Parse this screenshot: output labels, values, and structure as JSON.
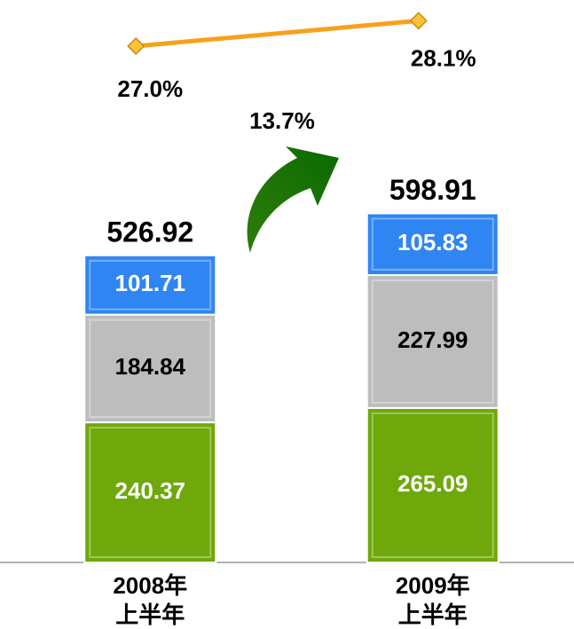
{
  "chart_data": {
    "type": "bar",
    "stacked": true,
    "categories": [
      "2008年\n上半年",
      "2009年\n上半年"
    ],
    "series": [
      {
        "name": "segment-1",
        "color": "#6fa80a",
        "values": [
          240.37,
          265.09
        ]
      },
      {
        "name": "segment-2",
        "color": "#bdbdbd",
        "values": [
          184.84,
          227.99
        ]
      },
      {
        "name": "segment-3",
        "color": "#2f86f2",
        "values": [
          101.71,
          105.83
        ]
      }
    ],
    "totals": [
      526.92,
      598.91
    ],
    "line": {
      "color": "#f7a21b",
      "values": [
        27.0,
        28.1
      ],
      "value_labels": [
        "27.0%",
        "28.1%"
      ],
      "axis": "y2"
    },
    "annotation": "13.7%",
    "ylim": [
      0,
      965
    ],
    "y2lim": [
      26,
      29
    ]
  }
}
